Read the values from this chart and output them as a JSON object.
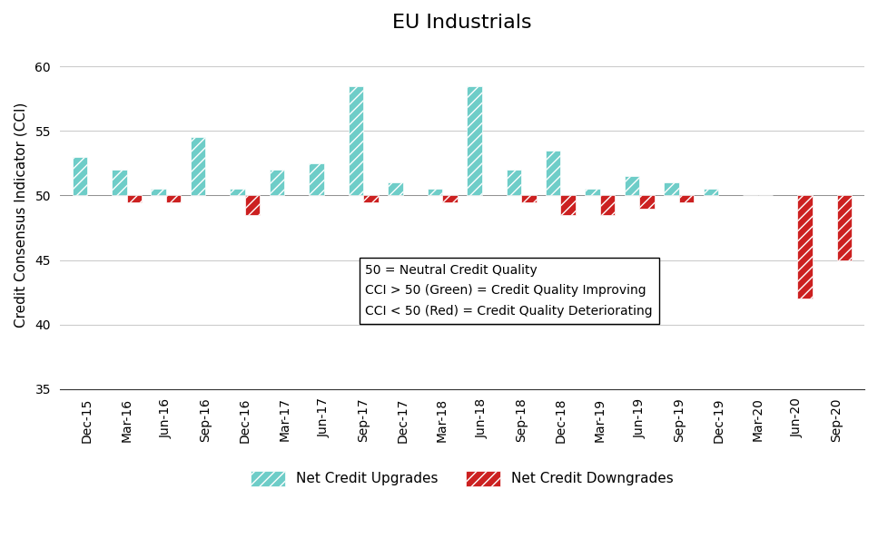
{
  "title": "EU Industrials",
  "ylabel": "Credit Consensus Indicator (CCI)",
  "ylim": [
    35,
    62
  ],
  "yticks": [
    35,
    40,
    45,
    50,
    55,
    60
  ],
  "baseline": 50,
  "categories": [
    "Dec-15",
    "Mar-16",
    "Jun-16",
    "Sep-16",
    "Dec-16",
    "Mar-17",
    "Jun-17",
    "Sep-17",
    "Dec-17",
    "Mar-18",
    "Jun-18",
    "Sep-18",
    "Dec-18",
    "Mar-19",
    "Jun-19",
    "Sep-19",
    "Dec-19",
    "Mar-20",
    "Jun-20",
    "Sep-20"
  ],
  "upgrades": [
    53,
    52,
    50.5,
    54.5,
    50.5,
    52,
    52.5,
    58.5,
    51,
    50.5,
    58.5,
    52,
    53.5,
    50.5,
    51.5,
    51,
    50.5,
    50,
    null,
    null
  ],
  "downgrades": [
    null,
    49.5,
    49.5,
    null,
    48.5,
    null,
    null,
    49.5,
    null,
    49.5,
    null,
    49.5,
    48.5,
    48.5,
    49,
    49.5,
    null,
    50,
    42,
    45
  ],
  "upgrade_color": "#6ECDC8",
  "downgrade_color": "#CC2020",
  "background_color": "#FFFFFF",
  "annotation_lines": [
    "50 = Neutral Credit Quality",
    "CCI > 50 (Green) = Credit Quality Improving",
    "CCI < 50 (Red) = Credit Quality Deteriorating"
  ],
  "bar_width": 0.38,
  "hatch_pattern": "///",
  "title_fontsize": 16,
  "axis_label_fontsize": 11,
  "tick_fontsize": 10,
  "annotation_fontsize": 10,
  "legend_fontsize": 11
}
